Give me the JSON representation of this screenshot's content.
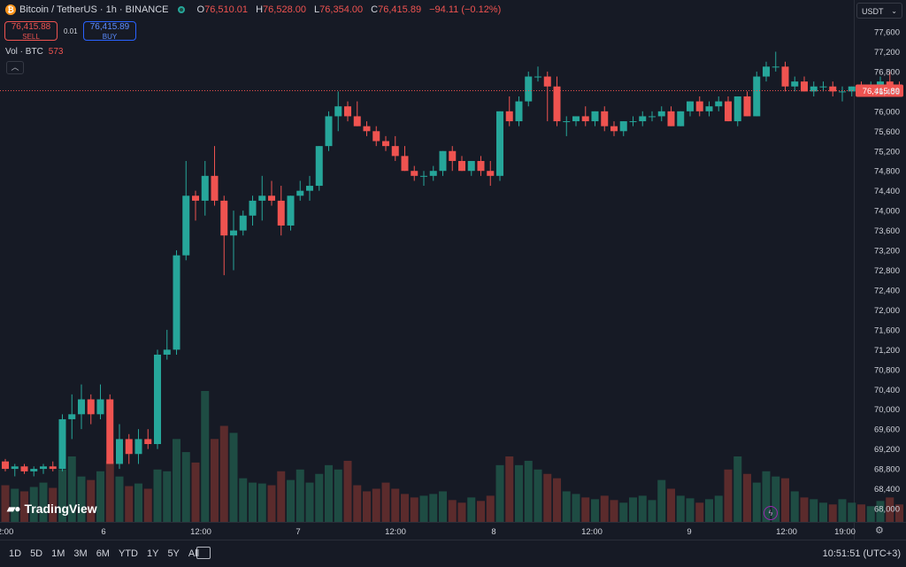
{
  "header": {
    "title": "Bitcoin / TetherUS · 1h · BINANCE",
    "ohlc": [
      {
        "k": "O",
        "v": "76,510.01"
      },
      {
        "k": "H",
        "v": "76,528.00"
      },
      {
        "k": "L",
        "v": "76,354.00"
      },
      {
        "k": "C",
        "v": "76,415.89"
      }
    ],
    "change": "−94.11 (−0.12%)"
  },
  "trade": {
    "sell_price": "76,415.88",
    "sell_label": "SELL",
    "spread": "0.01",
    "buy_price": "76,415.89",
    "buy_label": "BUY"
  },
  "volume": {
    "label": "Vol · BTC",
    "value": "573"
  },
  "currency": "USDT",
  "logo": "TradingView",
  "ranges": [
    "1D",
    "5D",
    "1M",
    "3M",
    "6M",
    "YTD",
    "1Y",
    "5Y",
    "All"
  ],
  "clock": "10:51:51 (UTC+3)",
  "colors": {
    "up": "#26a69a",
    "down": "#ef5350",
    "bg": "#161a25",
    "vol_up": "#1e4c43",
    "vol_down": "#5b2b2c"
  },
  "chart_data": {
    "type": "candlestick",
    "symbol": "Bitcoin / TetherUS",
    "interval": "1h",
    "ylim": [
      67800,
      77800
    ],
    "y_ticks": [
      68000,
      68400,
      68800,
      69200,
      69600,
      70000,
      70400,
      70800,
      71200,
      71600,
      72000,
      72400,
      72800,
      73200,
      73600,
      74000,
      74400,
      74800,
      75200,
      75600,
      76000,
      76400,
      76800,
      77200,
      77600
    ],
    "x_ticks": [
      "2:00",
      "6",
      "12:00",
      "7",
      "12:00",
      "8",
      "12:00",
      "9",
      "12:00",
      "19:00"
    ],
    "last_price": 76415.89,
    "last_price_label": "76,415.89",
    "candles": [
      [
        68950,
        69000,
        68750,
        68800,
        42
      ],
      [
        68800,
        68900,
        68650,
        68850,
        38
      ],
      [
        68850,
        68900,
        68700,
        68750,
        35
      ],
      [
        68750,
        68850,
        68650,
        68800,
        40
      ],
      [
        68800,
        68900,
        68700,
        68850,
        45
      ],
      [
        68850,
        68950,
        68750,
        68800,
        39
      ],
      [
        68800,
        69900,
        68750,
        69800,
        60
      ],
      [
        69800,
        70300,
        69400,
        69900,
        75
      ],
      [
        69900,
        70500,
        69600,
        70200,
        52
      ],
      [
        70200,
        70300,
        69700,
        69900,
        48
      ],
      [
        69900,
        70500,
        69800,
        70200,
        58
      ],
      [
        70200,
        70300,
        68900,
        68900,
        70
      ],
      [
        68900,
        69700,
        68800,
        69400,
        52
      ],
      [
        69400,
        69500,
        68900,
        69100,
        41
      ],
      [
        69100,
        69600,
        68900,
        69400,
        44
      ],
      [
        69400,
        69600,
        69200,
        69300,
        38
      ],
      [
        69300,
        71200,
        69200,
        71100,
        60
      ],
      [
        71100,
        71600,
        71000,
        71200,
        58
      ],
      [
        71200,
        73200,
        71100,
        73100,
        95
      ],
      [
        73100,
        75000,
        73000,
        74300,
        80
      ],
      [
        74300,
        74400,
        73800,
        74200,
        68
      ],
      [
        74200,
        75000,
        73900,
        74700,
        150
      ],
      [
        74700,
        75300,
        74100,
        74200,
        95
      ],
      [
        74200,
        74300,
        72700,
        73500,
        110
      ],
      [
        73500,
        74000,
        72800,
        73600,
        102
      ],
      [
        73600,
        74000,
        73500,
        73900,
        50
      ],
      [
        73900,
        74300,
        73700,
        74200,
        45
      ],
      [
        74200,
        74700,
        73800,
        74300,
        44
      ],
      [
        74300,
        74600,
        74100,
        74200,
        42
      ],
      [
        74200,
        74500,
        73500,
        73700,
        58
      ],
      [
        73700,
        74300,
        73600,
        74300,
        48
      ],
      [
        74300,
        74600,
        74200,
        74400,
        60
      ],
      [
        74400,
        74700,
        74200,
        74500,
        45
      ],
      [
        74500,
        75300,
        74400,
        75300,
        55
      ],
      [
        75300,
        76000,
        75200,
        75900,
        65
      ],
      [
        75900,
        76400,
        75600,
        76100,
        60
      ],
      [
        76100,
        76200,
        75800,
        75900,
        70
      ],
      [
        75900,
        76200,
        75700,
        75700,
        42
      ],
      [
        75700,
        75800,
        75500,
        75600,
        35
      ],
      [
        75600,
        75700,
        75300,
        75400,
        38
      ],
      [
        75400,
        75500,
        75200,
        75300,
        45
      ],
      [
        75300,
        75500,
        75000,
        75100,
        38
      ],
      [
        75100,
        75300,
        74800,
        74800,
        32
      ],
      [
        74800,
        74900,
        74600,
        74700,
        28
      ],
      [
        74700,
        74800,
        74500,
        74700,
        30
      ],
      [
        74700,
        74900,
        74600,
        74800,
        32
      ],
      [
        74800,
        75200,
        74700,
        75200,
        35
      ],
      [
        75200,
        75300,
        74800,
        75000,
        25
      ],
      [
        75000,
        75100,
        74800,
        74800,
        22
      ],
      [
        74800,
        75000,
        74700,
        75000,
        28
      ],
      [
        75000,
        75100,
        74700,
        74800,
        24
      ],
      [
        74800,
        75000,
        74500,
        74700,
        30
      ],
      [
        74700,
        76000,
        74600,
        76000,
        65
      ],
      [
        76000,
        76300,
        75700,
        75800,
        75
      ],
      [
        75800,
        76300,
        75700,
        76200,
        65
      ],
      [
        76200,
        76800,
        76100,
        76700,
        70
      ],
      [
        76700,
        76900,
        76600,
        76700,
        60
      ],
      [
        76700,
        76800,
        75800,
        76500,
        55
      ],
      [
        76500,
        76700,
        75700,
        75800,
        50
      ],
      [
        75800,
        75900,
        75500,
        75800,
        35
      ],
      [
        75800,
        75900,
        75700,
        75900,
        32
      ],
      [
        75900,
        76100,
        75700,
        75800,
        28
      ],
      [
        75800,
        76000,
        75700,
        76000,
        26
      ],
      [
        76000,
        76100,
        75600,
        75700,
        30
      ],
      [
        75700,
        75800,
        75500,
        75600,
        25
      ],
      [
        75600,
        75800,
        75500,
        75800,
        22
      ],
      [
        75800,
        75900,
        75700,
        75800,
        28
      ],
      [
        75800,
        76000,
        75700,
        75900,
        30
      ],
      [
        75900,
        76000,
        75800,
        75900,
        25
      ],
      [
        75900,
        76100,
        75800,
        76000,
        48
      ],
      [
        76000,
        76100,
        75700,
        75700,
        38
      ],
      [
        75700,
        76000,
        75700,
        76000,
        30
      ],
      [
        76000,
        76200,
        75900,
        76200,
        27
      ],
      [
        76200,
        76300,
        75900,
        76000,
        22
      ],
      [
        76000,
        76200,
        75900,
        76100,
        26
      ],
      [
        76100,
        76300,
        76000,
        76200,
        30
      ],
      [
        76200,
        76300,
        75800,
        75800,
        60
      ],
      [
        75800,
        76300,
        75700,
        76300,
        75
      ],
      [
        76300,
        76400,
        75900,
        75900,
        55
      ],
      [
        75900,
        76800,
        75900,
        76700,
        45
      ],
      [
        76700,
        77000,
        76600,
        76900,
        58
      ],
      [
        76900,
        77200,
        76800,
        76900,
        52
      ],
      [
        76900,
        77000,
        76400,
        76500,
        50
      ],
      [
        76500,
        76700,
        76400,
        76600,
        35
      ],
      [
        76600,
        76700,
        76400,
        76400,
        28
      ],
      [
        76400,
        76600,
        76300,
        76500,
        26
      ],
      [
        76500,
        76600,
        76400,
        76500,
        22
      ],
      [
        76500,
        76600,
        76300,
        76400,
        20
      ],
      [
        76400,
        76500,
        76200,
        76400,
        26
      ],
      [
        76400,
        76500,
        76300,
        76500,
        22
      ],
      [
        76500,
        76600,
        76400,
        76400,
        20
      ],
      [
        76400,
        76600,
        76300,
        76500,
        18
      ],
      [
        76500,
        76700,
        76400,
        76600,
        24
      ],
      [
        76600,
        76800,
        76500,
        76500,
        28
      ],
      [
        76500,
        76600,
        76400,
        76416,
        20
      ]
    ]
  }
}
